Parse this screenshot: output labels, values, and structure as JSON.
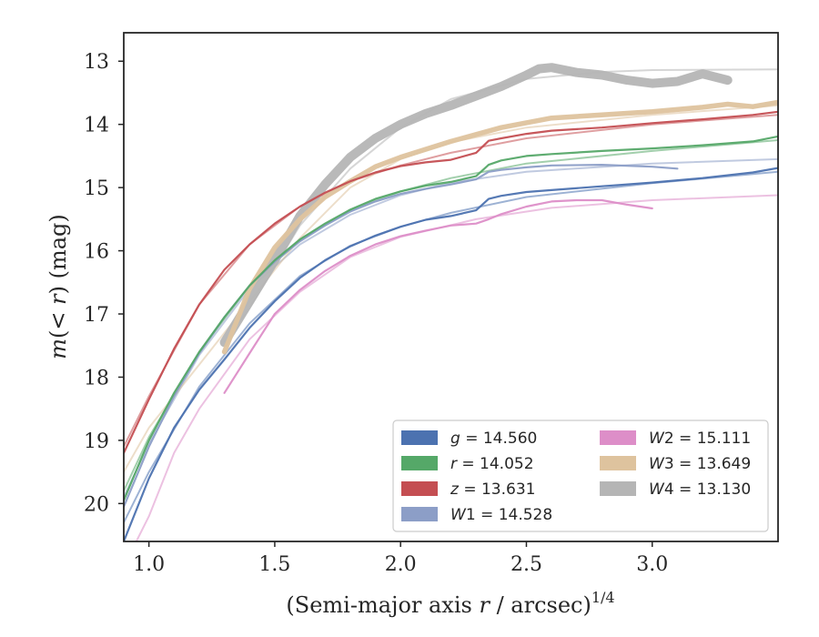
{
  "chart_data": {
    "type": "line",
    "xlabel": "(Semi-major axis r / arcsec)",
    "xlabel_parts": {
      "prefix": "(Semi-major axis ",
      "var": "r",
      "suffix": " / arcsec)",
      "sup": "1/4"
    },
    "ylabel": "m(< r) (mag)",
    "ylabel_parts": {
      "a": "m",
      "b": "(",
      "c": "< r",
      "d": ") (mag)"
    },
    "xlim": [
      0.9,
      3.5
    ],
    "ylim": [
      20.6,
      12.55
    ],
    "y_inverted": true,
    "xticks": [
      "1.0",
      "1.5",
      "2.0",
      "2.5",
      "3.0"
    ],
    "xtick_values": [
      1.0,
      1.5,
      2.0,
      2.5,
      3.0
    ],
    "yticks": [
      "13",
      "14",
      "15",
      "16",
      "17",
      "18",
      "19",
      "20"
    ],
    "ytick_values": [
      13,
      14,
      15,
      16,
      17,
      18,
      19,
      20
    ],
    "grid": false,
    "legend_position": "lower-right",
    "series": [
      {
        "name": "g",
        "label_var": "g",
        "label_sub": "",
        "label_value": "14.560",
        "color": "#4c72b0",
        "width": 2.2,
        "x": [
          0.9,
          1.0,
          1.1,
          1.2,
          1.3,
          1.4,
          1.5,
          1.6,
          1.7,
          1.8,
          1.9,
          2.0,
          2.1,
          2.2,
          2.3,
          2.35,
          2.4,
          2.5,
          2.6,
          2.8,
          3.0,
          3.2,
          3.4,
          3.5
        ],
        "y": [
          20.6,
          19.6,
          18.8,
          18.2,
          17.72,
          17.22,
          16.8,
          16.43,
          16.15,
          15.93,
          15.76,
          15.62,
          15.51,
          15.45,
          15.36,
          15.18,
          15.13,
          15.07,
          15.04,
          14.98,
          14.92,
          14.85,
          14.76,
          14.69
        ]
      },
      {
        "name": "r",
        "label_var": "r",
        "label_sub": "",
        "label_value": "14.052",
        "color": "#55a868",
        "width": 2.2,
        "x": [
          0.9,
          1.0,
          1.1,
          1.2,
          1.3,
          1.4,
          1.5,
          1.6,
          1.7,
          1.8,
          1.9,
          2.0,
          2.1,
          2.2,
          2.3,
          2.35,
          2.4,
          2.5,
          2.6,
          2.8,
          3.0,
          3.2,
          3.4,
          3.5
        ],
        "y": [
          19.95,
          19.0,
          18.25,
          17.6,
          17.05,
          16.55,
          16.15,
          15.82,
          15.57,
          15.35,
          15.18,
          15.06,
          14.97,
          14.91,
          14.82,
          14.64,
          14.57,
          14.5,
          14.47,
          14.42,
          14.38,
          14.33,
          14.27,
          14.19
        ]
      },
      {
        "name": "z",
        "label_var": "z",
        "label_sub": "",
        "label_value": "13.631",
        "color": "#c44e52",
        "width": 2.2,
        "x": [
          0.9,
          1.0,
          1.1,
          1.2,
          1.3,
          1.4,
          1.5,
          1.6,
          1.7,
          1.8,
          1.9,
          2.0,
          2.1,
          2.2,
          2.3,
          2.35,
          2.4,
          2.5,
          2.6,
          2.8,
          3.0,
          3.2,
          3.4,
          3.5
        ],
        "y": [
          19.2,
          18.35,
          17.55,
          16.85,
          16.3,
          15.9,
          15.57,
          15.3,
          15.08,
          14.9,
          14.76,
          14.66,
          14.6,
          14.56,
          14.45,
          14.26,
          14.22,
          14.15,
          14.1,
          14.05,
          13.98,
          13.92,
          13.85,
          13.8
        ]
      },
      {
        "name": "W1",
        "label_var": "W",
        "label_sub": "1",
        "label_value": "14.528",
        "color": "#8c9ec7",
        "width": 2.2,
        "x": [
          0.9,
          1.0,
          1.1,
          1.2,
          1.3,
          1.4,
          1.5,
          1.6,
          1.7,
          1.8,
          1.9,
          2.0,
          2.1,
          2.2,
          2.3,
          2.35,
          2.4,
          2.5,
          2.6,
          2.8,
          3.0,
          3.1
        ],
        "y": [
          20.05,
          19.1,
          18.3,
          17.62,
          17.05,
          16.55,
          16.17,
          15.85,
          15.6,
          15.38,
          15.22,
          15.1,
          15.02,
          14.95,
          14.87,
          14.75,
          14.72,
          14.68,
          14.65,
          14.64,
          14.67,
          14.7
        ]
      },
      {
        "name": "W2",
        "label_var": "W",
        "label_sub": "2",
        "label_value": "15.111",
        "color": "#dd8ec8",
        "width": 2.2,
        "x": [
          1.3,
          1.4,
          1.5,
          1.6,
          1.7,
          1.8,
          1.9,
          2.0,
          2.1,
          2.2,
          2.3,
          2.35,
          2.4,
          2.5,
          2.6,
          2.7,
          2.8,
          2.9,
          3.0
        ],
        "y": [
          18.25,
          17.62,
          17.0,
          16.62,
          16.32,
          16.08,
          15.9,
          15.77,
          15.68,
          15.6,
          15.57,
          15.5,
          15.42,
          15.3,
          15.22,
          15.2,
          15.2,
          15.27,
          15.33
        ]
      },
      {
        "name": "W3",
        "label_var": "W",
        "label_sub": "3",
        "label_value": "13.649",
        "color": "#dec39e",
        "width": 5.5,
        "x": [
          1.3,
          1.4,
          1.5,
          1.6,
          1.7,
          1.8,
          1.9,
          2.0,
          2.2,
          2.4,
          2.6,
          2.8,
          3.0,
          3.2,
          3.3,
          3.4,
          3.5
        ],
        "y": [
          17.6,
          16.6,
          15.95,
          15.5,
          15.15,
          14.9,
          14.67,
          14.52,
          14.27,
          14.05,
          13.9,
          13.85,
          13.8,
          13.73,
          13.68,
          13.72,
          13.65
        ]
      },
      {
        "name": "W4",
        "label_var": "W",
        "label_sub": "4",
        "label_value": "13.130",
        "color": "#b5b5b5",
        "width": 10,
        "x": [
          1.3,
          1.4,
          1.5,
          1.6,
          1.7,
          1.8,
          1.9,
          2.0,
          2.1,
          2.2,
          2.3,
          2.4,
          2.5,
          2.55,
          2.6,
          2.7,
          2.8,
          2.9,
          3.0,
          3.1,
          3.2,
          3.3
        ],
        "y": [
          17.45,
          16.8,
          16.15,
          15.45,
          14.95,
          14.52,
          14.22,
          14.0,
          13.83,
          13.7,
          13.55,
          13.4,
          13.22,
          13.12,
          13.1,
          13.18,
          13.22,
          13.3,
          13.35,
          13.32,
          13.2,
          13.3
        ]
      }
    ],
    "model_curves": [
      {
        "series": "g",
        "color": "#4c72b0",
        "x": [
          0.9,
          1.0,
          1.2,
          1.4,
          1.6,
          1.8,
          2.0,
          2.2,
          2.5,
          3.0,
          3.5
        ],
        "y": [
          20.3,
          19.5,
          18.15,
          17.15,
          16.4,
          15.92,
          15.62,
          15.4,
          15.15,
          14.93,
          14.75
        ]
      },
      {
        "series": "r",
        "color": "#55a868",
        "x": [
          0.9,
          1.0,
          1.2,
          1.4,
          1.6,
          1.8,
          2.0,
          2.2,
          2.5,
          3.0,
          3.5
        ],
        "y": [
          19.8,
          18.95,
          17.6,
          16.55,
          15.83,
          15.36,
          15.06,
          14.85,
          14.62,
          14.42,
          14.25
        ]
      },
      {
        "series": "z",
        "color": "#c44e52",
        "x": [
          0.9,
          1.0,
          1.2,
          1.4,
          1.6,
          1.8,
          2.0,
          2.2,
          2.5,
          3.0,
          3.5
        ],
        "y": [
          19.1,
          18.3,
          16.85,
          15.9,
          15.3,
          14.9,
          14.65,
          14.45,
          14.22,
          14.0,
          13.85
        ]
      },
      {
        "series": "W1",
        "color": "#8c9ec7",
        "x": [
          0.9,
          1.0,
          1.2,
          1.4,
          1.6,
          1.8,
          2.0,
          2.2,
          2.5,
          3.0,
          3.5
        ],
        "y": [
          19.9,
          19.05,
          17.65,
          16.6,
          15.9,
          15.43,
          15.12,
          14.92,
          14.75,
          14.62,
          14.55
        ]
      },
      {
        "series": "W2",
        "color": "#dd8ec8",
        "x": [
          0.95,
          1.0,
          1.1,
          1.2,
          1.4,
          1.6,
          1.8,
          2.0,
          2.3,
          2.6,
          3.0,
          3.5
        ],
        "y": [
          20.6,
          20.2,
          19.2,
          18.5,
          17.4,
          16.65,
          16.1,
          15.78,
          15.5,
          15.32,
          15.2,
          15.12
        ]
      },
      {
        "series": "W3",
        "color": "#dec39e",
        "x": [
          0.9,
          1.0,
          1.1,
          1.2,
          1.3,
          1.4,
          1.6,
          1.8,
          2.0,
          2.2,
          2.5,
          3.0,
          3.5
        ],
        "y": [
          19.5,
          18.8,
          18.3,
          17.8,
          17.3,
          16.8,
          15.8,
          15.0,
          14.55,
          14.28,
          14.05,
          13.85,
          13.7
        ]
      },
      {
        "series": "W4",
        "color": "#b5b5b5",
        "x": [
          1.3,
          1.4,
          1.6,
          1.8,
          2.0,
          2.2,
          2.5,
          2.8,
          3.0,
          3.5
        ],
        "y": [
          17.45,
          16.9,
          15.6,
          14.7,
          14.05,
          13.6,
          13.28,
          13.17,
          13.14,
          13.13
        ]
      }
    ]
  }
}
